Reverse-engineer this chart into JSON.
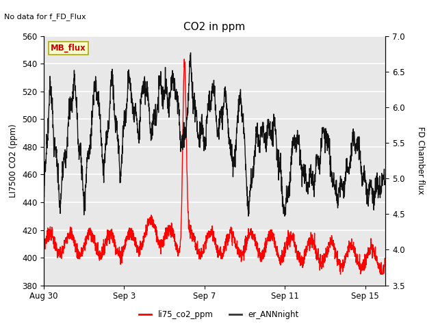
{
  "title": "CO2 in ppm",
  "top_left_text": "No data for f_FD_Flux",
  "ylabel_left": "LI7500 CO2 (ppm)",
  "ylabel_right": "FD Chamber flux",
  "ylim_left": [
    380,
    560
  ],
  "ylim_right": [
    3.5,
    7.0
  ],
  "yticks_left": [
    380,
    400,
    420,
    440,
    460,
    480,
    500,
    520,
    540,
    560
  ],
  "yticks_right": [
    3.5,
    4.0,
    4.5,
    5.0,
    5.5,
    6.0,
    6.5,
    7.0
  ],
  "xlabel_ticks": [
    "Aug 30",
    "Sep 3",
    "Sep 7",
    "Sep 11",
    "Sep 15"
  ],
  "xtick_positions": [
    0,
    4,
    8,
    12,
    16
  ],
  "xlim": [
    0,
    17
  ],
  "mb_flux_box": "MB_flux",
  "legend_entries": [
    "li75_co2_ppm",
    "er_ANNnight"
  ],
  "plot_bg_color": "#e8e8e8",
  "grid_color": "white",
  "line_color_red": "#ff0000",
  "line_color_black": "#111111",
  "figsize": [
    6.4,
    4.8
  ],
  "dpi": 100
}
